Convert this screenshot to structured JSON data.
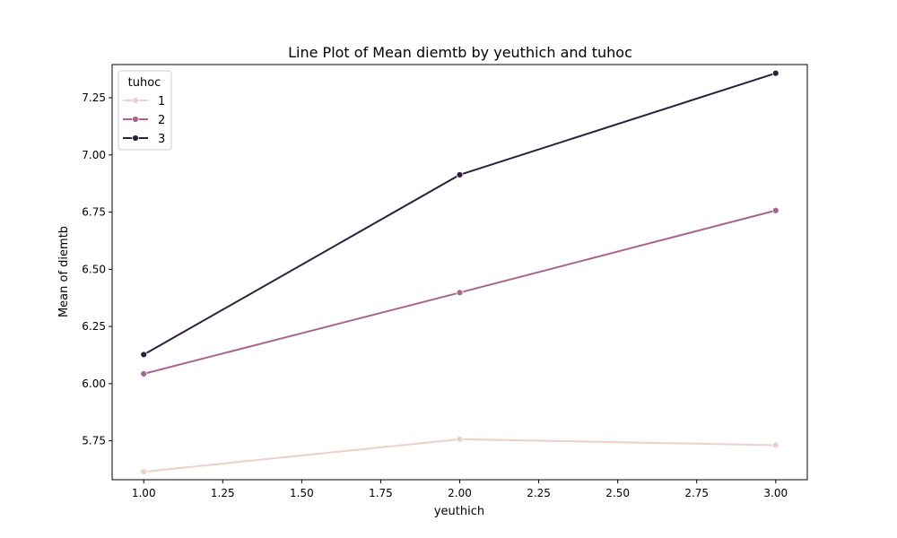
{
  "chart_data": {
    "type": "line",
    "title": "Line Plot of Mean diemtb by yeuthich and tuhoc",
    "xlabel": "yeuthich",
    "ylabel": "Mean of diemtb",
    "xlim": [
      0.9,
      3.1
    ],
    "ylim": [
      5.58,
      7.395
    ],
    "xticks": [
      1.0,
      1.25,
      1.5,
      1.75,
      2.0,
      2.25,
      2.5,
      2.75,
      3.0
    ],
    "xtick_labels": [
      "1.00",
      "1.25",
      "1.50",
      "1.75",
      "2.00",
      "2.25",
      "2.50",
      "2.75",
      "3.00"
    ],
    "yticks": [
      5.75,
      6.0,
      6.25,
      6.5,
      6.75,
      7.0,
      7.25
    ],
    "ytick_labels": [
      "5.75",
      "6.00",
      "6.25",
      "6.50",
      "6.75",
      "7.00",
      "7.25"
    ],
    "grid": false,
    "legend": {
      "title": "tuhoc",
      "placement": "top-left"
    },
    "x": [
      1.0,
      2.0,
      3.0
    ],
    "series": [
      {
        "name": "1",
        "color": "#eed0c8",
        "values": [
          5.615,
          5.757,
          5.731
        ]
      },
      {
        "name": "2",
        "color": "#a8648e",
        "values": [
          6.043,
          6.398,
          6.757
        ]
      },
      {
        "name": "3",
        "color": "#2d1e3e",
        "values": [
          6.127,
          6.913,
          7.357
        ]
      }
    ]
  }
}
